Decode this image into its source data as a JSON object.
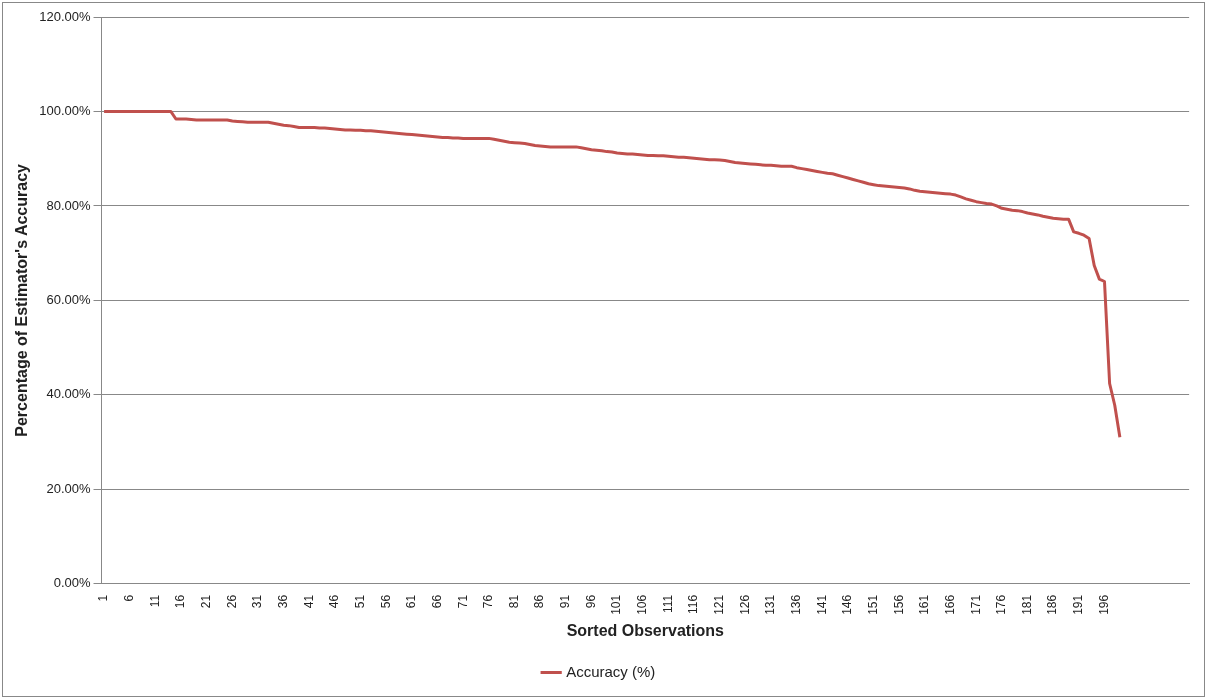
{
  "chart_data": {
    "type": "line",
    "xlabel": "Sorted Observations",
    "ylabel": "Percentage of Estimator's Accuracy",
    "categories": [
      "1",
      null,
      null,
      null,
      null,
      "6",
      null,
      null,
      null,
      null,
      "11",
      null,
      null,
      null,
      null,
      "16",
      null,
      null,
      null,
      null,
      "21",
      null,
      null,
      null,
      null,
      "26",
      null,
      null,
      null,
      null,
      "31",
      null,
      null,
      null,
      null,
      "36",
      null,
      null,
      null,
      null,
      "41",
      null,
      null,
      null,
      null,
      "46",
      null,
      null,
      null,
      null,
      "51",
      null,
      null,
      null,
      null,
      "56",
      null,
      null,
      null,
      null,
      "61",
      null,
      null,
      null,
      null,
      "66",
      null,
      null,
      null,
      null,
      "71",
      null,
      null,
      null,
      null,
      "76",
      null,
      null,
      null,
      null,
      "81",
      null,
      null,
      null,
      null,
      "86",
      null,
      null,
      null,
      null,
      "91",
      null,
      null,
      null,
      null,
      "96",
      null,
      null,
      null,
      null,
      "101",
      null,
      null,
      null,
      null,
      "106",
      null,
      null,
      null,
      null,
      "111",
      null,
      null,
      null,
      null,
      "116",
      null,
      null,
      null,
      null,
      "121",
      null,
      null,
      null,
      null,
      "126",
      null,
      null,
      null,
      null,
      "131",
      null,
      null,
      null,
      null,
      "136",
      null,
      null,
      null,
      null,
      "141",
      null,
      null,
      null,
      null,
      "146",
      null,
      null,
      null,
      null,
      "151",
      null,
      null,
      null,
      null,
      "156",
      null,
      null,
      null,
      null,
      "161",
      null,
      null,
      null,
      null,
      "166",
      null,
      null,
      null,
      null,
      "171",
      null,
      null,
      null,
      null,
      "176",
      null,
      null,
      null,
      null,
      "181",
      null,
      null,
      null,
      null,
      "186",
      null,
      null,
      null,
      null,
      "191",
      null,
      null,
      null,
      null,
      "196",
      null,
      null,
      null,
      null,
      null,
      null,
      null,
      null,
      null,
      null,
      null,
      null,
      null,
      null,
      null,
      null
    ],
    "series": [
      {
        "name": "Accuracy (%)",
        "color": "#c0504d",
        "values": [
          100,
          100,
          100,
          100,
          100,
          100,
          100,
          100,
          100,
          100,
          100,
          100,
          100,
          100,
          98.4,
          98.4,
          98.4,
          98.3,
          98.2,
          98.2,
          98.2,
          98.2,
          98.2,
          98.2,
          98.2,
          98,
          97.9,
          97.8,
          97.7,
          97.7,
          97.7,
          97.7,
          97.7,
          97.5,
          97.3,
          97.1,
          97,
          96.8,
          96.6,
          96.6,
          96.6,
          96.6,
          96.5,
          96.5,
          96.4,
          96.3,
          96.2,
          96.1,
          96.1,
          96,
          96,
          95.9,
          95.9,
          95.8,
          95.7,
          95.6,
          95.5,
          95.4,
          95.3,
          95.2,
          95.1,
          95,
          94.9,
          94.8,
          94.7,
          94.6,
          94.5,
          94.5,
          94.4,
          94.4,
          94.3,
          94.3,
          94.3,
          94.3,
          94.3,
          94.3,
          94.1,
          93.9,
          93.7,
          93.5,
          93.4,
          93.3,
          93.2,
          93,
          92.8,
          92.7,
          92.6,
          92.5,
          92.5,
          92.5,
          92.5,
          92.5,
          92.5,
          92.3,
          92.1,
          91.9,
          91.8,
          91.7,
          91.5,
          91.4,
          91.2,
          91.1,
          91,
          91,
          90.9,
          90.8,
          90.7,
          90.7,
          90.6,
          90.6,
          90.5,
          90.4,
          90.3,
          90.3,
          90.2,
          90.1,
          90,
          89.9,
          89.8,
          89.8,
          89.7,
          89.6,
          89.4,
          89.2,
          89.1,
          89,
          88.9,
          88.8,
          88.7,
          88.6,
          88.6,
          88.5,
          88.4,
          88.4,
          88.4,
          88.1,
          87.9,
          87.7,
          87.5,
          87.3,
          87.1,
          86.9,
          86.8,
          86.5,
          86.2,
          85.9,
          85.6,
          85.3,
          85,
          84.7,
          84.5,
          84.3,
          84.2,
          84.1,
          84,
          83.9,
          83.8,
          83.6,
          83.3,
          83.1,
          83,
          82.9,
          82.8,
          82.7,
          82.6,
          82.5,
          82.3,
          81.9,
          81.5,
          81.2,
          80.9,
          80.7,
          80.5,
          80.4,
          80,
          79.5,
          79.3,
          79.1,
          79,
          78.8,
          78.5,
          78.3,
          78.1,
          77.8,
          77.6,
          77.4,
          77.3,
          77.2,
          77.2,
          74.5,
          74.2,
          73.8,
          73.1,
          67.4,
          64.5,
          64,
          42.4,
          37.8,
          31,
          null,
          null,
          null,
          null,
          null,
          null,
          null,
          null,
          null,
          null,
          null,
          null,
          null
        ]
      }
    ],
    "ylim": [
      0,
      120
    ],
    "yticks": [
      {
        "value": 0,
        "label": "0.00%"
      },
      {
        "value": 20,
        "label": "20.00%"
      },
      {
        "value": 40,
        "label": "40.00%"
      },
      {
        "value": 60,
        "label": "60.00%"
      },
      {
        "value": 80,
        "label": "80.00%"
      },
      {
        "value": 100,
        "label": "100.00%"
      },
      {
        "value": 120,
        "label": "120.00%"
      }
    ],
    "grid": "y",
    "legend": "bottom",
    "marker": "none",
    "line_style": "solid"
  }
}
